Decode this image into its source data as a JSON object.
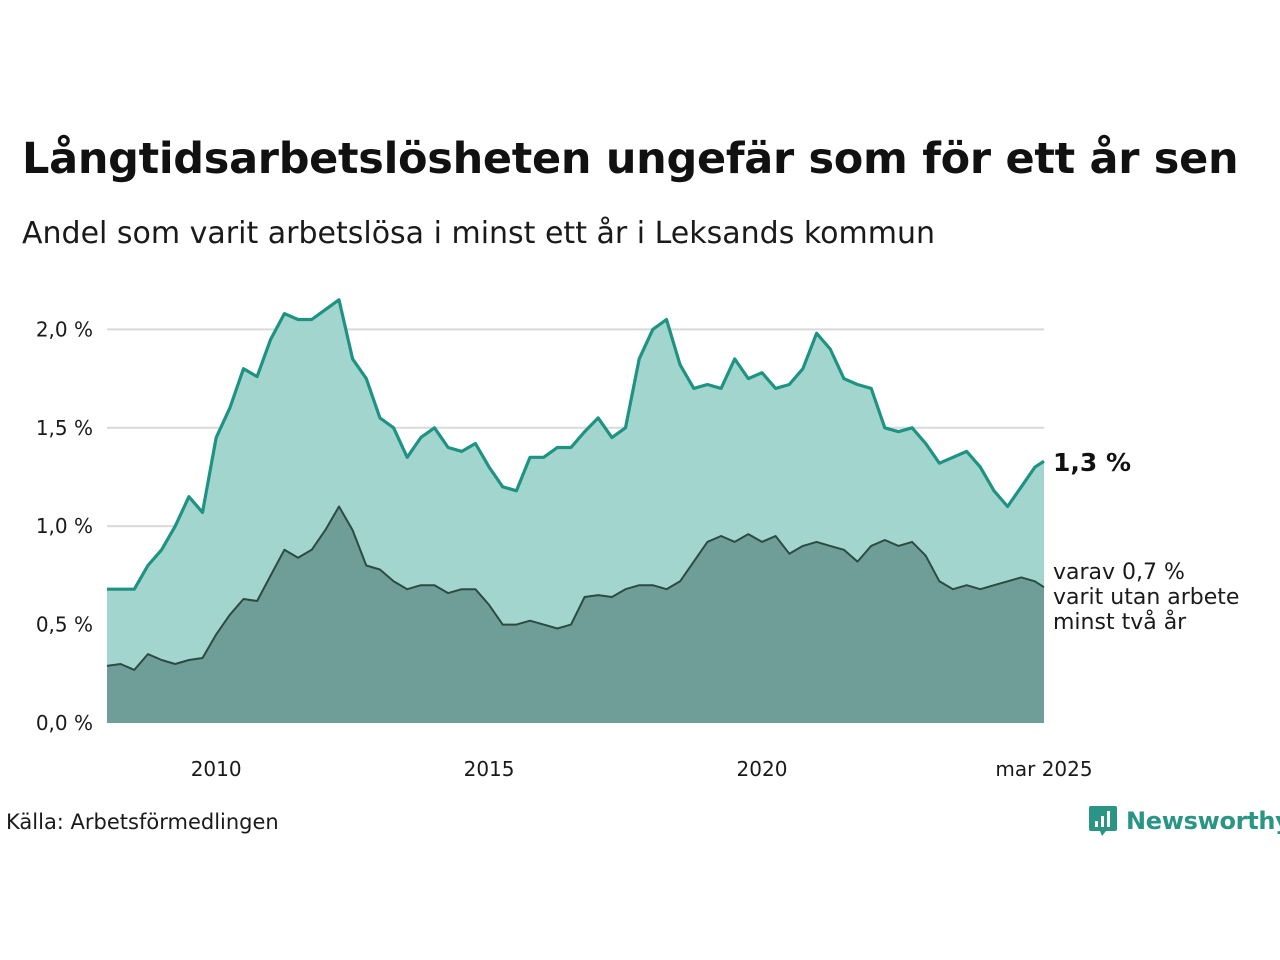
{
  "header": {
    "title": "Långtidsarbetslösheten ungefär som för ett år sen",
    "subtitle": "Andel som varit arbetslösa i minst ett år i Leksands kommun"
  },
  "footer": {
    "source": "Källa: Arbetsförmedlingen",
    "brand": "Newsworthy"
  },
  "colors": {
    "main_line": "#1f9383",
    "main_fill": "#a3d5cf",
    "sub_line": "#2d4a44",
    "sub_fill": "#6f9e98",
    "grid": "#d9d9d9"
  },
  "chart_data": {
    "type": "area",
    "x_start": "2008-01",
    "x_end": "2025-03",
    "x_step": "month",
    "x_ticks": [
      {
        "x": "2010-01",
        "label": "2010"
      },
      {
        "x": "2015-01",
        "label": "2015"
      },
      {
        "x": "2020-01",
        "label": "2020"
      },
      {
        "x": "2025-03",
        "label": "mar 2025"
      }
    ],
    "y_ticks": [
      {
        "value": 0.0,
        "label": "0,0 %"
      },
      {
        "value": 0.5,
        "label": "0,5 %"
      },
      {
        "value": 1.0,
        "label": "1,0 %"
      },
      {
        "value": 1.5,
        "label": "1,5 %"
      },
      {
        "value": 2.0,
        "label": "2,0 %"
      }
    ],
    "ylim": [
      0,
      2.2
    ],
    "grid": true,
    "series": [
      {
        "key": "minst_ett_ar",
        "end_label": "1,3 %",
        "points": [
          [
            "2008-01",
            0.68
          ],
          [
            "2008-04",
            0.68
          ],
          [
            "2008-07",
            0.68
          ],
          [
            "2008-10",
            0.8
          ],
          [
            "2009-01",
            0.88
          ],
          [
            "2009-04",
            1.0
          ],
          [
            "2009-07",
            1.15
          ],
          [
            "2009-10",
            1.07
          ],
          [
            "2010-01",
            1.45
          ],
          [
            "2010-04",
            1.6
          ],
          [
            "2010-07",
            1.8
          ],
          [
            "2010-10",
            1.76
          ],
          [
            "2011-01",
            1.95
          ],
          [
            "2011-04",
            2.08
          ],
          [
            "2011-07",
            2.05
          ],
          [
            "2011-10",
            2.05
          ],
          [
            "2012-01",
            2.1
          ],
          [
            "2012-04",
            2.15
          ],
          [
            "2012-07",
            1.85
          ],
          [
            "2012-10",
            1.75
          ],
          [
            "2013-01",
            1.55
          ],
          [
            "2013-04",
            1.5
          ],
          [
            "2013-07",
            1.35
          ],
          [
            "2013-10",
            1.45
          ],
          [
            "2014-01",
            1.5
          ],
          [
            "2014-04",
            1.4
          ],
          [
            "2014-07",
            1.38
          ],
          [
            "2014-10",
            1.42
          ],
          [
            "2015-01",
            1.3
          ],
          [
            "2015-04",
            1.2
          ],
          [
            "2015-07",
            1.18
          ],
          [
            "2015-10",
            1.35
          ],
          [
            "2016-01",
            1.35
          ],
          [
            "2016-04",
            1.4
          ],
          [
            "2016-07",
            1.4
          ],
          [
            "2016-10",
            1.48
          ],
          [
            "2017-01",
            1.55
          ],
          [
            "2017-04",
            1.45
          ],
          [
            "2017-07",
            1.5
          ],
          [
            "2017-10",
            1.85
          ],
          [
            "2018-01",
            2.0
          ],
          [
            "2018-04",
            2.05
          ],
          [
            "2018-07",
            1.82
          ],
          [
            "2018-10",
            1.7
          ],
          [
            "2019-01",
            1.72
          ],
          [
            "2019-04",
            1.7
          ],
          [
            "2019-07",
            1.85
          ],
          [
            "2019-10",
            1.75
          ],
          [
            "2020-01",
            1.78
          ],
          [
            "2020-04",
            1.7
          ],
          [
            "2020-07",
            1.72
          ],
          [
            "2020-10",
            1.8
          ],
          [
            "2021-01",
            1.98
          ],
          [
            "2021-04",
            1.9
          ],
          [
            "2021-07",
            1.75
          ],
          [
            "2021-10",
            1.72
          ],
          [
            "2022-01",
            1.7
          ],
          [
            "2022-04",
            1.5
          ],
          [
            "2022-07",
            1.48
          ],
          [
            "2022-10",
            1.5
          ],
          [
            "2023-01",
            1.42
          ],
          [
            "2023-04",
            1.32
          ],
          [
            "2023-07",
            1.35
          ],
          [
            "2023-10",
            1.38
          ],
          [
            "2024-01",
            1.3
          ],
          [
            "2024-04",
            1.18
          ],
          [
            "2024-07",
            1.1
          ],
          [
            "2024-10",
            1.2
          ],
          [
            "2025-01",
            1.3
          ],
          [
            "2025-03",
            1.33
          ]
        ]
      },
      {
        "key": "minst_tva_ar",
        "label_lines": [
          "varav 0,7 %",
          "varit utan arbete",
          "minst två år"
        ],
        "points": [
          [
            "2008-01",
            0.29
          ],
          [
            "2008-04",
            0.3
          ],
          [
            "2008-07",
            0.27
          ],
          [
            "2008-10",
            0.35
          ],
          [
            "2009-01",
            0.32
          ],
          [
            "2009-04",
            0.3
          ],
          [
            "2009-07",
            0.32
          ],
          [
            "2009-10",
            0.33
          ],
          [
            "2010-01",
            0.45
          ],
          [
            "2010-04",
            0.55
          ],
          [
            "2010-07",
            0.63
          ],
          [
            "2010-10",
            0.62
          ],
          [
            "2011-01",
            0.75
          ],
          [
            "2011-04",
            0.88
          ],
          [
            "2011-07",
            0.84
          ],
          [
            "2011-10",
            0.88
          ],
          [
            "2012-01",
            0.98
          ],
          [
            "2012-04",
            1.1
          ],
          [
            "2012-07",
            0.98
          ],
          [
            "2012-10",
            0.8
          ],
          [
            "2013-01",
            0.78
          ],
          [
            "2013-04",
            0.72
          ],
          [
            "2013-07",
            0.68
          ],
          [
            "2013-10",
            0.7
          ],
          [
            "2014-01",
            0.7
          ],
          [
            "2014-04",
            0.66
          ],
          [
            "2014-07",
            0.68
          ],
          [
            "2014-10",
            0.68
          ],
          [
            "2015-01",
            0.6
          ],
          [
            "2015-04",
            0.5
          ],
          [
            "2015-07",
            0.5
          ],
          [
            "2015-10",
            0.52
          ],
          [
            "2016-01",
            0.5
          ],
          [
            "2016-04",
            0.48
          ],
          [
            "2016-07",
            0.5
          ],
          [
            "2016-10",
            0.64
          ],
          [
            "2017-01",
            0.65
          ],
          [
            "2017-04",
            0.64
          ],
          [
            "2017-07",
            0.68
          ],
          [
            "2017-10",
            0.7
          ],
          [
            "2018-01",
            0.7
          ],
          [
            "2018-04",
            0.68
          ],
          [
            "2018-07",
            0.72
          ],
          [
            "2018-10",
            0.82
          ],
          [
            "2019-01",
            0.92
          ],
          [
            "2019-04",
            0.95
          ],
          [
            "2019-07",
            0.92
          ],
          [
            "2019-10",
            0.96
          ],
          [
            "2020-01",
            0.92
          ],
          [
            "2020-04",
            0.95
          ],
          [
            "2020-07",
            0.86
          ],
          [
            "2020-10",
            0.9
          ],
          [
            "2021-01",
            0.92
          ],
          [
            "2021-04",
            0.9
          ],
          [
            "2021-07",
            0.88
          ],
          [
            "2021-10",
            0.82
          ],
          [
            "2022-01",
            0.9
          ],
          [
            "2022-04",
            0.93
          ],
          [
            "2022-07",
            0.9
          ],
          [
            "2022-10",
            0.92
          ],
          [
            "2023-01",
            0.85
          ],
          [
            "2023-04",
            0.72
          ],
          [
            "2023-07",
            0.68
          ],
          [
            "2023-10",
            0.7
          ],
          [
            "2024-01",
            0.68
          ],
          [
            "2024-04",
            0.7
          ],
          [
            "2024-07",
            0.72
          ],
          [
            "2024-10",
            0.74
          ],
          [
            "2025-01",
            0.72
          ],
          [
            "2025-03",
            0.69
          ]
        ]
      }
    ]
  }
}
